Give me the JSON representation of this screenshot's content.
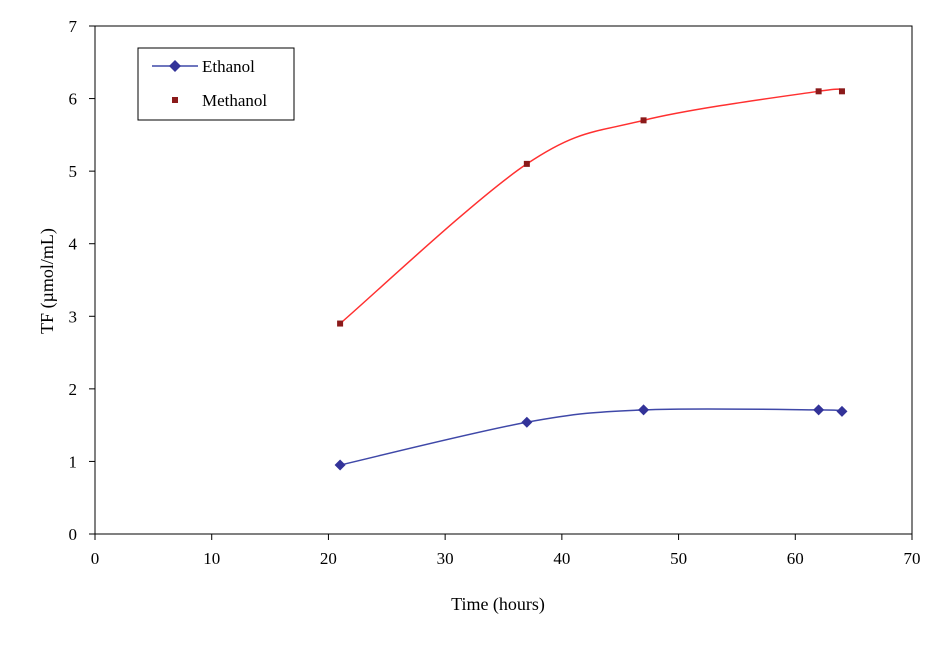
{
  "chart_data": {
    "type": "line",
    "title": "",
    "xlabel": "Time (hours)",
    "ylabel": "TF (µmol/mL)",
    "xlim": [
      0,
      70
    ],
    "ylim": [
      0,
      7
    ],
    "xticks": [
      0,
      10,
      20,
      30,
      40,
      50,
      60,
      70
    ],
    "yticks": [
      0,
      1,
      2,
      3,
      4,
      5,
      6,
      7
    ],
    "grid": false,
    "legend_position": "top-left",
    "series": [
      {
        "name": "Ethanol",
        "color": "#333399",
        "line_color": "#3f48a8",
        "marker": "diamond",
        "x": [
          21,
          37,
          47,
          62,
          64
        ],
        "y": [
          0.95,
          1.54,
          1.71,
          1.71,
          1.69
        ]
      },
      {
        "name": "Methanol",
        "color": "#8b1a1a",
        "line_color": "#ff3030",
        "marker": "square",
        "x": [
          21,
          37,
          47,
          62,
          64
        ],
        "y": [
          2.9,
          5.1,
          5.7,
          6.1,
          6.1
        ]
      }
    ]
  }
}
